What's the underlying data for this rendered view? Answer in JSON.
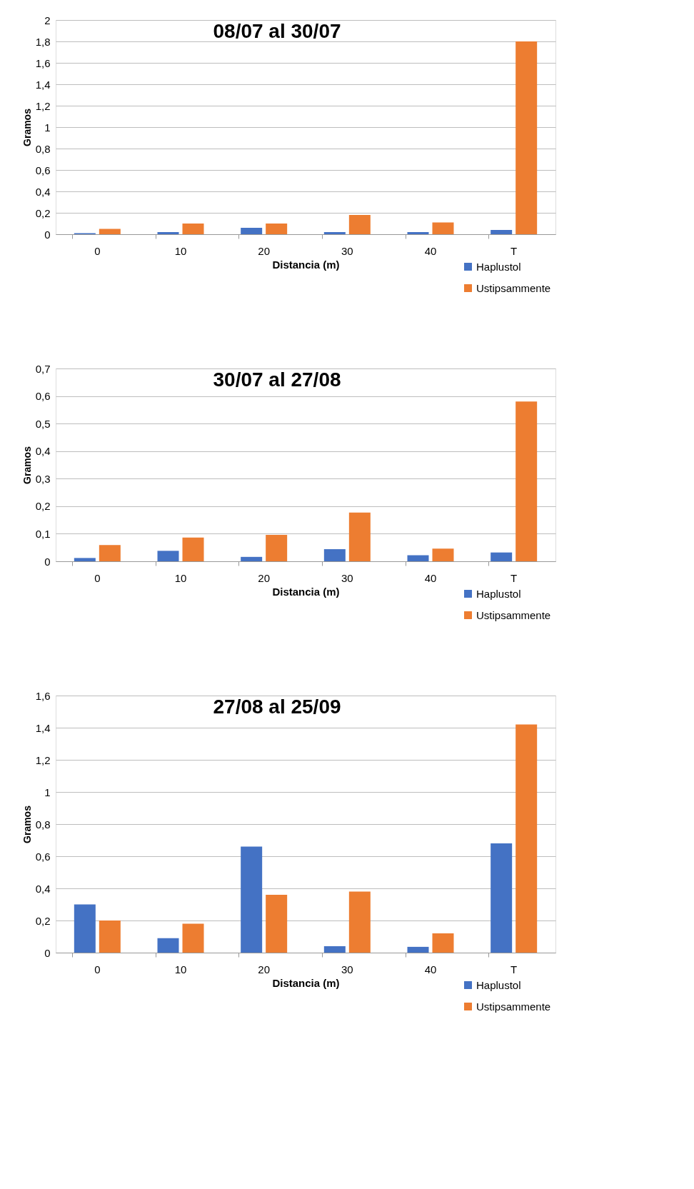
{
  "chart_data": [
    {
      "type": "bar",
      "title": "08/07 al 30/07",
      "xlabel": "Distancia (m)",
      "ylabel": "Gramos",
      "categories": [
        "0",
        "10",
        "20",
        "30",
        "40",
        "T"
      ],
      "series": [
        {
          "name": "Haplustol",
          "color": "#4472c4",
          "values": [
            0.01,
            0.02,
            0.06,
            0.02,
            0.02,
            0.04
          ]
        },
        {
          "name": "Ustipsammente",
          "color": "#ed7d31",
          "values": [
            0.05,
            0.1,
            0.1,
            0.18,
            0.11,
            1.8
          ]
        }
      ],
      "ylim": [
        0,
        2
      ],
      "yticks": [
        0,
        {
          "value": 0.2,
          "label": "0,2"
        },
        {
          "value": 0.4,
          "label": "0,4"
        },
        {
          "value": 0.6,
          "label": "0,6"
        },
        {
          "value": 0.8,
          "label": "0,8"
        },
        1,
        {
          "value": 1.2,
          "label": "1,2"
        },
        {
          "value": 1.4,
          "label": "1,4"
        },
        {
          "value": 1.6,
          "label": "1,6"
        },
        {
          "value": 1.8,
          "label": "1,8"
        },
        2
      ],
      "grid": "y",
      "legend": "bottom right"
    },
    {
      "type": "bar",
      "title": "30/07 al 27/08",
      "xlabel": "Distancia (m)",
      "ylabel": "Gramos",
      "categories": [
        "0",
        "10",
        "20",
        "30",
        "40",
        "T"
      ],
      "series": [
        {
          "name": "Haplustol",
          "color": "#4472c4",
          "values": [
            0.012,
            0.038,
            0.016,
            0.044,
            0.022,
            0.032
          ]
        },
        {
          "name": "Ustipsammente",
          "color": "#ed7d31",
          "values": [
            0.059,
            0.086,
            0.096,
            0.177,
            0.046,
            0.58
          ]
        }
      ],
      "ylim": [
        0,
        0.7
      ],
      "yticks": [
        0,
        {
          "value": 0.1,
          "label": "0,1"
        },
        {
          "value": 0.2,
          "label": "0,2"
        },
        {
          "value": 0.3,
          "label": "0,3"
        },
        {
          "value": 0.4,
          "label": "0,4"
        },
        {
          "value": 0.5,
          "label": "0,5"
        },
        {
          "value": 0.6,
          "label": "0,6"
        },
        {
          "value": 0.7,
          "label": "0,7"
        }
      ],
      "grid": "y",
      "legend": "bottom right"
    },
    {
      "type": "bar",
      "title": "27/08 al 25/09",
      "xlabel": "Distancia (m)",
      "ylabel": "Gramos",
      "categories": [
        "0",
        "10",
        "20",
        "30",
        "40",
        "T"
      ],
      "series": [
        {
          "name": "Haplustol",
          "color": "#4472c4",
          "values": [
            0.3,
            0.09,
            0.66,
            0.04,
            0.036,
            0.68
          ]
        },
        {
          "name": "Ustipsammente",
          "color": "#ed7d31",
          "values": [
            0.2,
            0.18,
            0.36,
            0.38,
            0.12,
            1.42
          ]
        }
      ],
      "ylim": [
        0,
        1.6
      ],
      "yticks": [
        0,
        {
          "value": 0.2,
          "label": "0,2"
        },
        {
          "value": 0.4,
          "label": "0,4"
        },
        {
          "value": 0.6,
          "label": "0,6"
        },
        {
          "value": 0.8,
          "label": "0,8"
        },
        1,
        {
          "value": 1.2,
          "label": "1,2"
        },
        {
          "value": 1.4,
          "label": "1,4"
        },
        {
          "value": 1.6,
          "label": "1,6"
        }
      ],
      "grid": "y",
      "legend": "bottom right"
    }
  ]
}
